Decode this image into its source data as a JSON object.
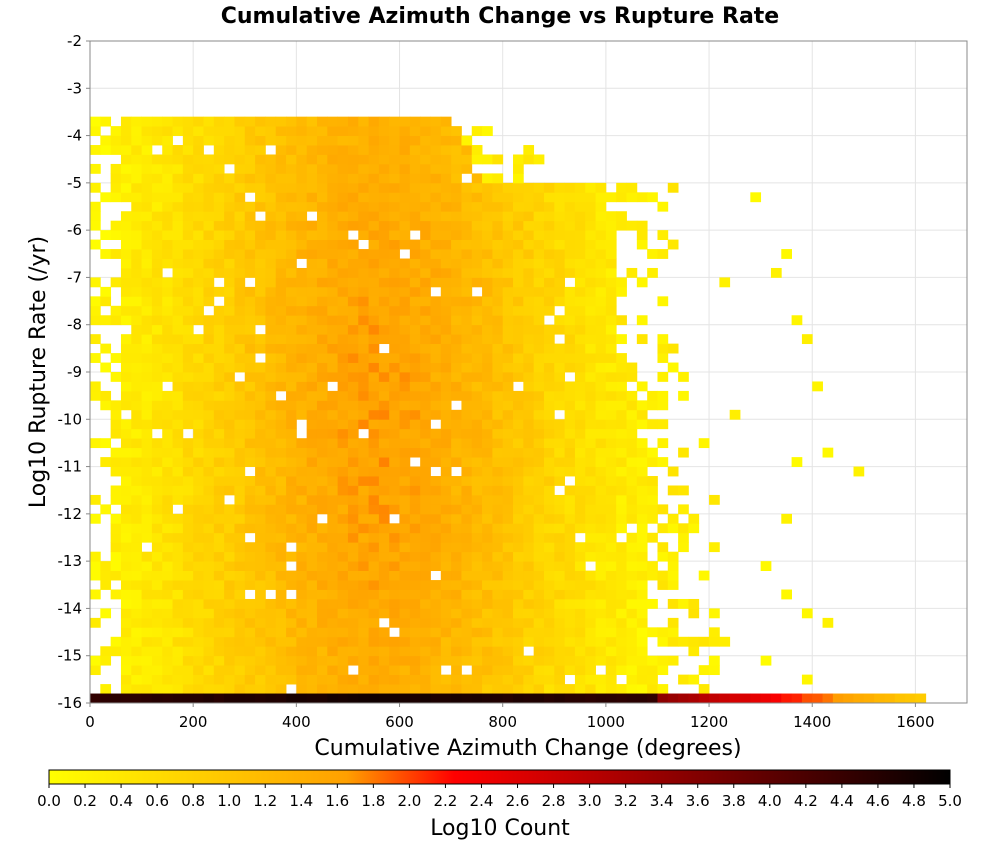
{
  "chart_data": {
    "type": "heatmap",
    "title": "Cumulative Azimuth Change vs Rupture Rate",
    "xlabel": "Cumulative Azimuth Change (degrees)",
    "ylabel": "Log10 Rupture Rate (/yr)",
    "xlim": [
      0,
      1700
    ],
    "ylim": [
      -16,
      -2
    ],
    "x_ticks": [
      0,
      200,
      400,
      600,
      800,
      1000,
      1200,
      1400,
      1600
    ],
    "y_ticks": [
      -2,
      -3,
      -4,
      -5,
      -6,
      -7,
      -8,
      -9,
      -10,
      -11,
      -12,
      -13,
      -14,
      -15,
      -16
    ],
    "grid": true,
    "x_bin_width": 20,
    "y_bin_width": 0.2,
    "colorbar": {
      "label": "Log10 Count",
      "min": 0.0,
      "max": 5.0,
      "ticks": [
        "0.0",
        "0.2",
        "0.4",
        "0.6",
        "0.8",
        "1.0",
        "1.2",
        "1.4",
        "1.6",
        "1.8",
        "2.0",
        "2.2",
        "2.4",
        "2.6",
        "2.8",
        "3.0",
        "3.2",
        "3.4",
        "3.6",
        "3.8",
        "4.0",
        "4.2",
        "4.4",
        "4.6",
        "4.8",
        "5.0"
      ],
      "colors": [
        "#ffff00",
        "#ffa000",
        "#ff0000",
        "#000000"
      ]
    },
    "density_model": {
      "description_of_values": "log10 count per bin",
      "bulk_peak_x": 560,
      "bulk_peak_value": 1.6,
      "bottom_row_y": -15.9,
      "bottom_row_peak_value": 4.8
    }
  }
}
